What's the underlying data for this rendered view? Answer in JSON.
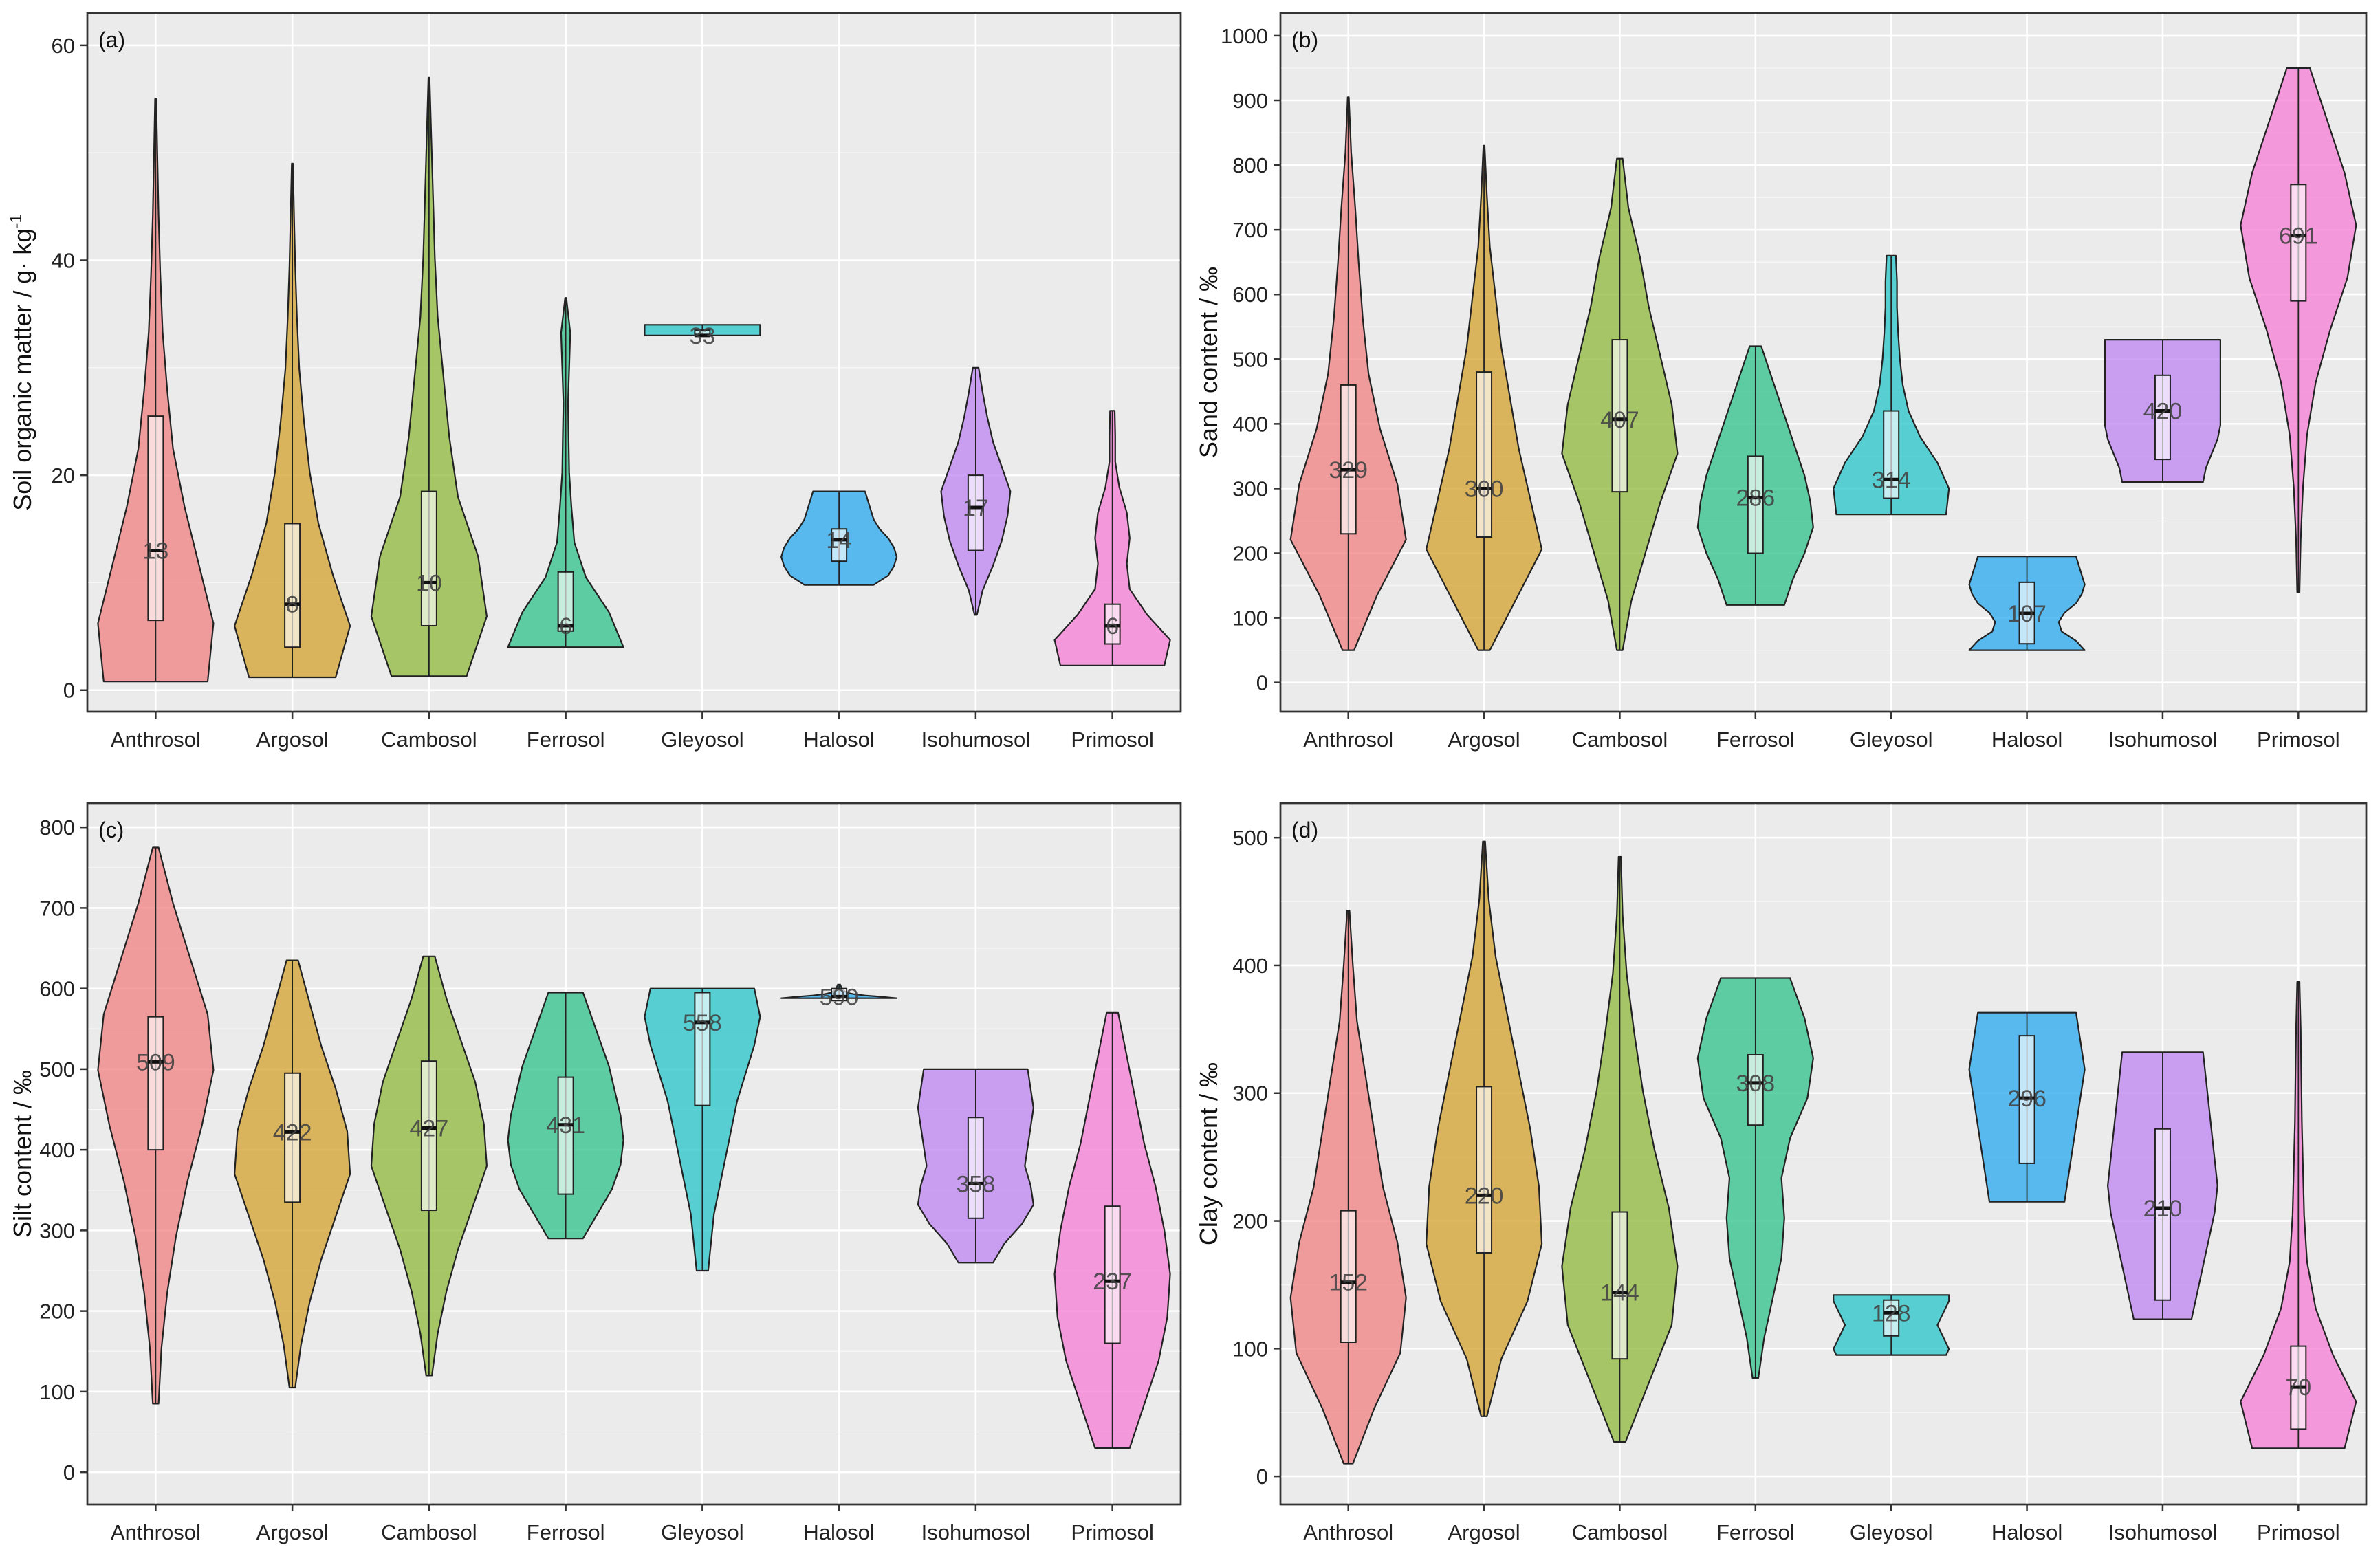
{
  "chart_data": [
    {
      "id": "a",
      "type": "violin",
      "panel_label": "(a)",
      "ylabel": "Soil organic matter / g· kg",
      "ylabel_superscript": "-1",
      "ylim": [
        -2,
        63
      ],
      "yticks": [
        "0",
        "20",
        "40",
        "60"
      ],
      "categories": [
        "Anthrosol",
        "Argosol",
        "Cambosol",
        "Ferrosol",
        "Gleyosol",
        "Halosol",
        "Isohumosol",
        "Primosol"
      ],
      "medians": [
        13,
        8,
        10,
        6,
        33,
        14,
        17,
        6
      ],
      "median_labels": [
        "13",
        "8",
        "10",
        "6",
        "33",
        "14",
        "17",
        "6"
      ],
      "q1": [
        6.5,
        4,
        6,
        5.5,
        33,
        12,
        13,
        4.3
      ],
      "q3": [
        25.5,
        15.5,
        18.5,
        11,
        33.5,
        15,
        20,
        8
      ],
      "min": [
        0.8,
        1.2,
        1.3,
        4,
        33,
        9.8,
        7,
        2.3
      ],
      "max": [
        55,
        49,
        57,
        36.5,
        34,
        18.5,
        30,
        26
      ],
      "colors": [
        "#F08080",
        "#D4A12C",
        "#8DB83A",
        "#2EC28A",
        "#26C6C9",
        "#27A8F0",
        "#BE84F2",
        "#F57CD4"
      ],
      "widths": [
        [
          0.9,
          1.0,
          0.75,
          0.5,
          0.3,
          0.2,
          0.12,
          0.08,
          0.05,
          0.03,
          0.01
        ],
        [
          0.75,
          1.0,
          0.7,
          0.45,
          0.3,
          0.2,
          0.12,
          0.08,
          0.05,
          0.03,
          0.01
        ],
        [
          0.65,
          1.0,
          0.85,
          0.5,
          0.35,
          0.25,
          0.15,
          0.1,
          0.07,
          0.04,
          0.01
        ],
        [
          1.0,
          0.75,
          0.35,
          0.15,
          0.1,
          0.06,
          0.05,
          0.04,
          0.06,
          0.08,
          0.01
        ],
        [
          1.0,
          1.0,
          1.0,
          1.0,
          1.0,
          1.0,
          1.0,
          1.0,
          1.0,
          1.0,
          1.0
        ],
        [
          0.6,
          0.85,
          0.95,
          1.0,
          0.95,
          0.85,
          0.7,
          0.6,
          0.55,
          0.5,
          0.45
        ],
        [
          0.02,
          0.12,
          0.3,
          0.45,
          0.55,
          0.6,
          0.45,
          0.3,
          0.2,
          0.12,
          0.05
        ],
        [
          0.9,
          1.0,
          0.6,
          0.3,
          0.25,
          0.3,
          0.25,
          0.12,
          0.05,
          0.05,
          0.04
        ]
      ]
    },
    {
      "id": "b",
      "type": "violin",
      "panel_label": "(b)",
      "ylabel": "Sand content / ‰",
      "ylim": [
        -45,
        1035
      ],
      "yticks": [
        "0",
        "100",
        "200",
        "300",
        "400",
        "500",
        "600",
        "700",
        "800",
        "900",
        "1000"
      ],
      "categories": [
        "Anthrosol",
        "Argosol",
        "Cambosol",
        "Ferrosol",
        "Gleyosol",
        "Halosol",
        "Isohumosol",
        "Primosol"
      ],
      "medians": [
        329,
        300,
        407,
        286,
        314,
        107,
        420,
        691
      ],
      "median_labels": [
        "329",
        "300",
        "407",
        "286",
        "314",
        "107",
        "420",
        "691"
      ],
      "q1": [
        230,
        225,
        295,
        200,
        285,
        60,
        345,
        590
      ],
      "q3": [
        460,
        480,
        530,
        350,
        420,
        155,
        475,
        770
      ],
      "min": [
        50,
        50,
        50,
        120,
        260,
        50,
        310,
        140
      ],
      "max": [
        905,
        830,
        810,
        520,
        660,
        195,
        530,
        950
      ],
      "colors": [
        "#F08080",
        "#D4A12C",
        "#8DB83A",
        "#2EC28A",
        "#26C6C9",
        "#27A8F0",
        "#BE84F2",
        "#F57CD4"
      ],
      "widths": [
        [
          0.1,
          0.5,
          1.0,
          0.85,
          0.55,
          0.35,
          0.25,
          0.18,
          0.12,
          0.05,
          0.01
        ],
        [
          0.1,
          0.55,
          1.0,
          0.8,
          0.6,
          0.45,
          0.3,
          0.2,
          0.1,
          0.05,
          0.01
        ],
        [
          0.05,
          0.2,
          0.45,
          0.7,
          1.0,
          0.9,
          0.7,
          0.5,
          0.35,
          0.15,
          0.05
        ],
        [
          0.5,
          0.65,
          0.85,
          1.0,
          0.95,
          0.85,
          0.7,
          0.55,
          0.4,
          0.25,
          0.1
        ],
        [
          0.95,
          1.0,
          0.8,
          0.5,
          0.3,
          0.2,
          0.15,
          0.12,
          0.1,
          0.1,
          0.08
        ],
        [
          1.0,
          0.85,
          0.6,
          0.55,
          0.65,
          0.85,
          0.95,
          1.0,
          0.95,
          0.9,
          0.85
        ],
        [
          0.7,
          0.75,
          0.85,
          0.95,
          1.0,
          1.0,
          1.0,
          1.0,
          1.0,
          1.0,
          1.0
        ],
        [
          0.02,
          0.04,
          0.08,
          0.15,
          0.3,
          0.55,
          0.85,
          1.0,
          0.8,
          0.5,
          0.2
        ]
      ]
    },
    {
      "id": "c",
      "type": "violin",
      "panel_label": "(c)",
      "ylabel": "Silt content / ‰",
      "ylim": [
        -40,
        830
      ],
      "yticks": [
        "0",
        "100",
        "200",
        "300",
        "400",
        "500",
        "600",
        "700",
        "800"
      ],
      "categories": [
        "Anthrosol",
        "Argosol",
        "Cambosol",
        "Ferrosol",
        "Gleyosol",
        "Halosol",
        "Isohumosol",
        "Primosol"
      ],
      "medians": [
        509,
        422,
        427,
        431,
        558,
        590,
        358,
        237
      ],
      "median_labels": [
        "509",
        "422",
        "427",
        "431",
        "558",
        "590",
        "358",
        "237"
      ],
      "q1": [
        400,
        335,
        325,
        345,
        455,
        585,
        315,
        160
      ],
      "q3": [
        565,
        495,
        510,
        490,
        595,
        600,
        440,
        330
      ],
      "min": [
        85,
        105,
        120,
        290,
        250,
        588,
        260,
        30
      ],
      "max": [
        775,
        635,
        640,
        595,
        600,
        605,
        500,
        570
      ],
      "colors": [
        "#F08080",
        "#D4A12C",
        "#8DB83A",
        "#2EC28A",
        "#26C6C9",
        "#27A8F0",
        "#BE84F2",
        "#F57CD4"
      ],
      "widths": [
        [
          0.05,
          0.1,
          0.2,
          0.35,
          0.55,
          0.8,
          1.0,
          0.9,
          0.6,
          0.3,
          0.05
        ],
        [
          0.05,
          0.15,
          0.3,
          0.5,
          0.75,
          1.0,
          0.95,
          0.75,
          0.5,
          0.3,
          0.1
        ],
        [
          0.05,
          0.15,
          0.3,
          0.5,
          0.75,
          1.0,
          0.95,
          0.8,
          0.55,
          0.3,
          0.1
        ],
        [
          0.3,
          0.55,
          0.8,
          0.95,
          1.0,
          0.95,
          0.85,
          0.75,
          0.6,
          0.45,
          0.3
        ],
        [
          0.1,
          0.15,
          0.2,
          0.3,
          0.4,
          0.5,
          0.6,
          0.75,
          0.9,
          1.0,
          0.9
        ],
        [
          1.0,
          0.75,
          0.45,
          0.25,
          0.15,
          0.1,
          0.08,
          0.05,
          0.04,
          0.03,
          0.02
        ],
        [
          0.3,
          0.5,
          0.8,
          1.0,
          0.95,
          0.85,
          0.9,
          0.95,
          1.0,
          0.95,
          0.9
        ],
        [
          0.3,
          0.55,
          0.8,
          0.95,
          1.0,
          0.9,
          0.75,
          0.55,
          0.4,
          0.25,
          0.1
        ]
      ]
    },
    {
      "id": "d",
      "type": "violin",
      "panel_label": "(d)",
      "ylabel": "Clay content / ‰",
      "ylim": [
        -22,
        527
      ],
      "yticks": [
        "0",
        "100",
        "200",
        "300",
        "400",
        "500"
      ],
      "categories": [
        "Anthrosol",
        "Argosol",
        "Cambosol",
        "Ferrosol",
        "Gleyosol",
        "Halosol",
        "Isohumosol",
        "Primosol"
      ],
      "medians": [
        152,
        220,
        144,
        308,
        128,
        296,
        210,
        70
      ],
      "median_labels": [
        "152",
        "220",
        "144",
        "308",
        "128",
        "296",
        "210",
        "70"
      ],
      "q1": [
        105,
        175,
        92,
        275,
        110,
        245,
        138,
        37
      ],
      "q3": [
        208,
        305,
        207,
        330,
        138,
        345,
        272,
        102
      ],
      "min": [
        10,
        47,
        27,
        77,
        95,
        215,
        123,
        22
      ],
      "max": [
        443,
        497,
        485,
        390,
        142,
        363,
        332,
        387
      ],
      "colors": [
        "#F08080",
        "#D4A12C",
        "#8DB83A",
        "#2EC28A",
        "#26C6C9",
        "#27A8F0",
        "#BE84F2",
        "#F57CD4"
      ],
      "widths": [
        [
          0.08,
          0.45,
          0.9,
          1.0,
          0.85,
          0.6,
          0.45,
          0.3,
          0.15,
          0.08,
          0.02
        ],
        [
          0.05,
          0.3,
          0.75,
          1.0,
          0.95,
          0.8,
          0.6,
          0.4,
          0.2,
          0.08,
          0.02
        ],
        [
          0.1,
          0.5,
          0.9,
          1.0,
          0.85,
          0.6,
          0.4,
          0.25,
          0.12,
          0.05,
          0.02
        ],
        [
          0.05,
          0.15,
          0.3,
          0.45,
          0.5,
          0.45,
          0.6,
          0.9,
          1.0,
          0.85,
          0.6
        ],
        [
          0.95,
          1.0,
          0.95,
          0.9,
          0.85,
          0.8,
          0.85,
          0.9,
          0.95,
          1.0,
          1.0
        ],
        [
          0.65,
          0.7,
          0.75,
          0.8,
          0.85,
          0.9,
          0.95,
          1.0,
          0.95,
          0.9,
          0.85
        ],
        [
          0.5,
          0.6,
          0.7,
          0.8,
          0.9,
          0.95,
          0.9,
          0.85,
          0.8,
          0.75,
          0.7
        ],
        [
          0.8,
          1.0,
          0.6,
          0.3,
          0.15,
          0.1,
          0.08,
          0.06,
          0.05,
          0.04,
          0.02
        ]
      ]
    }
  ]
}
